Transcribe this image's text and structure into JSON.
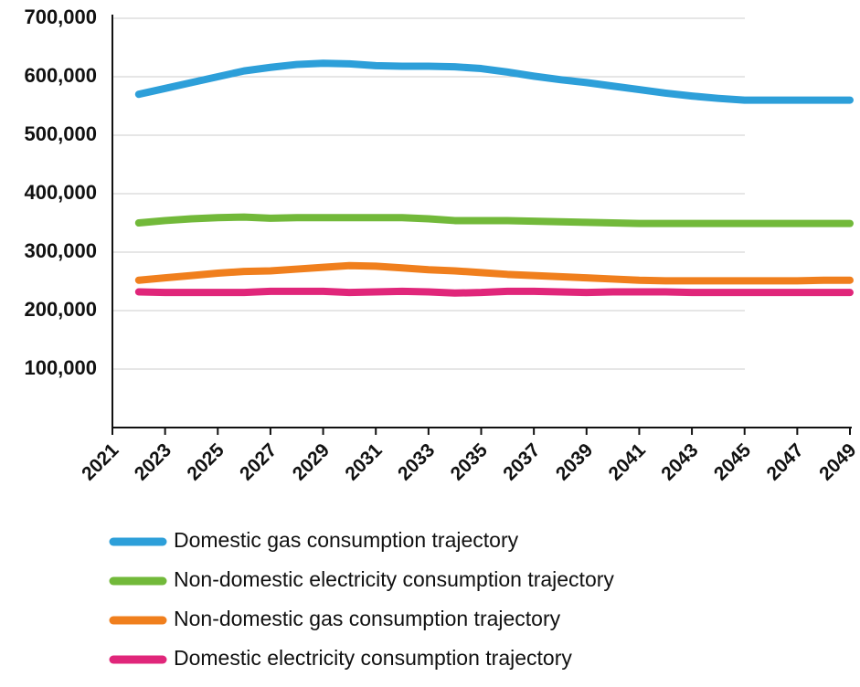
{
  "chart_data": {
    "type": "line",
    "x": [
      2022,
      2023,
      2024,
      2025,
      2026,
      2027,
      2028,
      2029,
      2030,
      2031,
      2032,
      2033,
      2034,
      2035,
      2036,
      2037,
      2038,
      2039,
      2040,
      2041,
      2042,
      2043,
      2044,
      2045,
      2046,
      2047,
      2048,
      2049
    ],
    "series": [
      {
        "name": "Domestic gas consumption trajectory",
        "color": "#2d9fd9",
        "values": [
          570000,
          580000,
          590000,
          600000,
          610000,
          616000,
          621000,
          623000,
          622000,
          619000,
          618000,
          618000,
          617000,
          614000,
          608000,
          601000,
          595000,
          590000,
          584000,
          578000,
          572000,
          567000,
          563000,
          560000,
          560000,
          560000,
          560000,
          560000
        ]
      },
      {
        "name": "Non-domestic electricity consumption trajectory",
        "color": "#72b93a",
        "values": [
          350000,
          354000,
          357000,
          359000,
          360000,
          358000,
          359000,
          359000,
          359000,
          359000,
          359000,
          357000,
          354000,
          354000,
          354000,
          353000,
          352000,
          351000,
          350000,
          349000,
          349000,
          349000,
          349000,
          349000,
          349000,
          349000,
          349000,
          349000
        ]
      },
      {
        "name": "Non-domestic gas consumption trajectory",
        "color": "#f07f1d",
        "values": [
          252000,
          256000,
          260000,
          264000,
          267000,
          268000,
          271000,
          274000,
          277000,
          276000,
          273000,
          270000,
          268000,
          265000,
          262000,
          260000,
          258000,
          256000,
          254000,
          252000,
          251000,
          251000,
          251000,
          251000,
          251000,
          251000,
          252000,
          252000
        ]
      },
      {
        "name": "Domestic electricity consumption trajectory",
        "color": "#e0267a",
        "values": [
          232000,
          231000,
          231000,
          231000,
          231000,
          233000,
          233000,
          233000,
          231000,
          232000,
          233000,
          232000,
          230000,
          231000,
          233000,
          233000,
          232000,
          231000,
          232000,
          232000,
          232000,
          231000,
          231000,
          231000,
          231000,
          231000,
          231000,
          231000
        ]
      }
    ],
    "xlim": [
      2021,
      2049
    ],
    "xticks": [
      2021,
      2023,
      2025,
      2027,
      2029,
      2031,
      2033,
      2035,
      2037,
      2039,
      2041,
      2043,
      2045,
      2047,
      2049
    ],
    "ylim": [
      0,
      700000
    ],
    "yticks": [
      {
        "value": 100000,
        "label": "100,000"
      },
      {
        "value": 200000,
        "label": "200,000"
      },
      {
        "value": 300000,
        "label": "300,000"
      },
      {
        "value": 400000,
        "label": "400,000"
      },
      {
        "value": 500000,
        "label": "500,000"
      },
      {
        "value": 600000,
        "label": "600,000"
      },
      {
        "value": 700000,
        "label": "700,000"
      }
    ],
    "grid": true
  }
}
